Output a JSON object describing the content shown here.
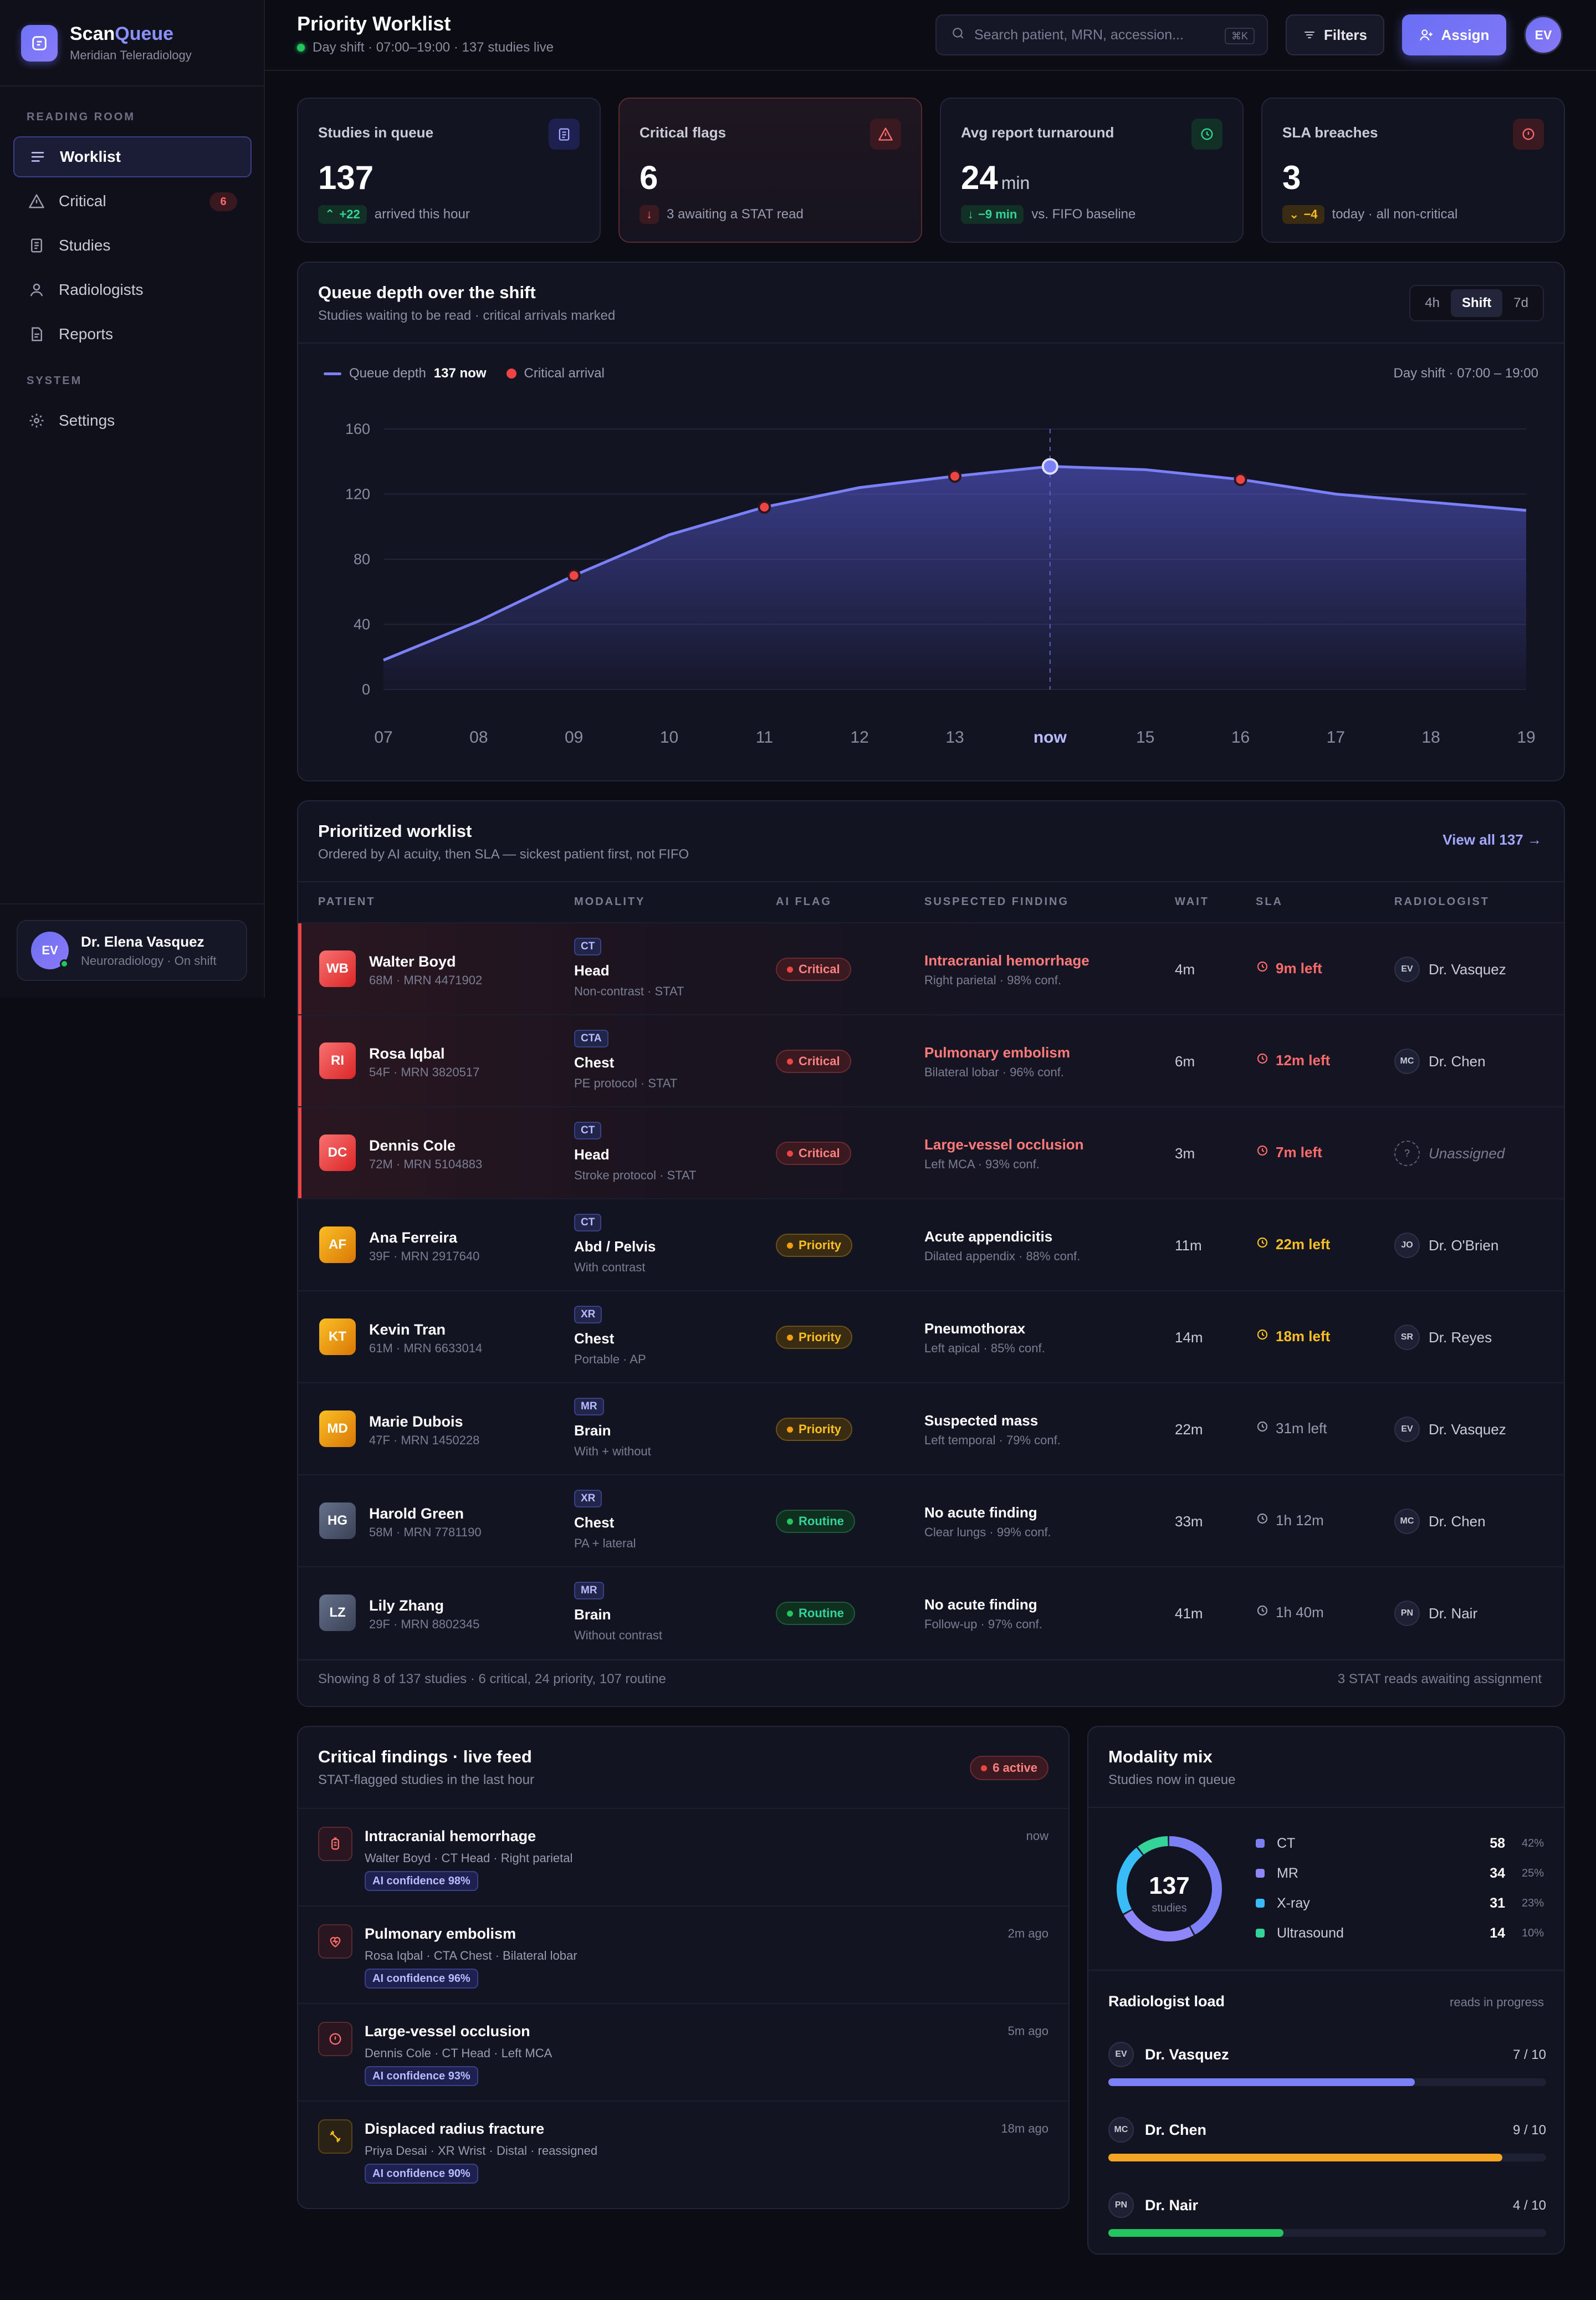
{
  "brand": {
    "name_a": "Scan",
    "name_b": "Queue",
    "sub": "Meridian Teleradiology"
  },
  "sidebar": {
    "section_reading": "READING ROOM",
    "section_system": "SYSTEM",
    "items": [
      {
        "label": "Worklist",
        "icon": "list-icon",
        "active": true
      },
      {
        "label": "Critical",
        "icon": "alert-triangle-icon",
        "badge": "6"
      },
      {
        "label": "Studies",
        "icon": "document-icon"
      },
      {
        "label": "Radiologists",
        "icon": "user-icon"
      },
      {
        "label": "Reports",
        "icon": "report-icon"
      }
    ],
    "settings": {
      "label": "Settings",
      "icon": "gear-icon"
    },
    "user": {
      "initials": "EV",
      "name": "Dr. Elena Vasquez",
      "sub": "Neuroradiology · On shift"
    }
  },
  "header": {
    "title": "Priority Worklist",
    "sub": "Day shift · 07:00–19:00 · 137 studies live",
    "search_placeholder": "Search patient, MRN, accession...",
    "search_kbd": "⌘K",
    "filters_label": "Filters",
    "assign_label": "Assign",
    "avatar": "EV"
  },
  "kpis": [
    {
      "label": "Studies in queue",
      "value": "137",
      "unit": "",
      "delta": "+22",
      "delta_dir": "up",
      "delta_tone": "green",
      "note": "arrived this hour",
      "icon": "clipboard-icon",
      "tone": "indigo"
    },
    {
      "label": "Critical flags",
      "value": "6",
      "unit": "",
      "delta": "",
      "delta_dir": "down",
      "delta_tone": "red",
      "note": "3 awaiting a STAT read",
      "icon": "alert-triangle-icon",
      "tone": "red"
    },
    {
      "label": "Avg report turnaround",
      "value": "24",
      "unit": "min",
      "delta": "−9 min",
      "delta_dir": "down",
      "delta_tone": "green",
      "note": "vs. FIFO baseline",
      "icon": "clock-icon",
      "tone": "green"
    },
    {
      "label": "SLA breaches",
      "value": "3",
      "unit": "",
      "delta": "−4",
      "delta_dir": "down",
      "delta_tone": "amber",
      "note": "today · all non-critical",
      "icon": "alert-circle-icon",
      "tone": "red"
    }
  ],
  "queue_chart": {
    "title": "Queue depth over the shift",
    "sub": "Studies waiting to be read · critical arrivals marked",
    "ranges": [
      "4h",
      "Shift",
      "7d"
    ],
    "active_range": "Shift",
    "legend_series": "Queue depth",
    "legend_now": "137 now",
    "legend_critical": "Critical arrival",
    "shift_label": "Day shift · 07:00 – 19:00"
  },
  "chart_data": {
    "type": "area",
    "title": "Queue depth over the shift",
    "categories": [
      "07",
      "08",
      "09",
      "10",
      "11",
      "12",
      "13",
      "now",
      "15",
      "16",
      "17",
      "18",
      "19"
    ],
    "series": [
      {
        "name": "Queue depth",
        "values": [
          18,
          42,
          70,
          95,
          112,
          124,
          131,
          137,
          135,
          129,
          120,
          115,
          110
        ]
      }
    ],
    "critical_arrivals": [
      {
        "x": "09",
        "y": 70
      },
      {
        "x": "11",
        "y": 112
      },
      {
        "x": "13",
        "y": 131
      },
      {
        "x": "16",
        "y": 129
      }
    ],
    "now_marker": "now",
    "yticks": [
      0,
      40,
      80,
      120,
      160
    ],
    "ylim": [
      0,
      160
    ],
    "grid": true,
    "colors": {
      "line": "#7b80f7",
      "critical": "#ef4444"
    }
  },
  "worklist": {
    "title": "Prioritized worklist",
    "sub": "Ordered by AI acuity, then SLA — sickest patient first, not FIFO",
    "view_all": "View all 137 →",
    "headers": [
      "PATIENT",
      "MODALITY",
      "AI FLAG",
      "SUSPECTED FINDING",
      "WAIT",
      "SLA",
      "RADIOLOGIST"
    ],
    "rows": [
      {
        "initials": "WB",
        "name": "Walter Boyd",
        "meta": "68M · MRN 4471902",
        "mod": "CT",
        "body": "Head",
        "protocol": "Non-contrast · STAT",
        "flag": "Critical",
        "finding": "Intracranial hemorrhage",
        "finding_sub": "Right parietal · 98% conf.",
        "wait": "4m",
        "sla": "9m left",
        "rad_init": "EV",
        "rad": "Dr. Vasquez",
        "tone": "critical"
      },
      {
        "initials": "RI",
        "name": "Rosa Iqbal",
        "meta": "54F · MRN 3820517",
        "mod": "CTA",
        "body": "Chest",
        "protocol": "PE protocol · STAT",
        "flag": "Critical",
        "finding": "Pulmonary embolism",
        "finding_sub": "Bilateral lobar · 96% conf.",
        "wait": "6m",
        "sla": "12m left",
        "rad_init": "MC",
        "rad": "Dr. Chen",
        "tone": "critical"
      },
      {
        "initials": "DC",
        "name": "Dennis Cole",
        "meta": "72M · MRN 5104883",
        "mod": "CT",
        "body": "Head",
        "protocol": "Stroke protocol · STAT",
        "flag": "Critical",
        "finding": "Large-vessel occlusion",
        "finding_sub": "Left MCA · 93% conf.",
        "wait": "3m",
        "sla": "7m left",
        "rad_init": "?",
        "rad": "Unassigned",
        "tone": "critical"
      },
      {
        "initials": "AF",
        "name": "Ana Ferreira",
        "meta": "39F · MRN 2917640",
        "mod": "CT",
        "body": "Abd / Pelvis",
        "protocol": "With contrast",
        "flag": "Priority",
        "finding": "Acute appendicitis",
        "finding_sub": "Dilated appendix · 88% conf.",
        "wait": "11m",
        "sla": "22m left",
        "rad_init": "JO",
        "rad": "Dr. O'Brien",
        "tone": "priority"
      },
      {
        "initials": "KT",
        "name": "Kevin Tran",
        "meta": "61M · MRN 6633014",
        "mod": "XR",
        "body": "Chest",
        "protocol": "Portable · AP",
        "flag": "Priority",
        "finding": "Pneumothorax",
        "finding_sub": "Left apical · 85% conf.",
        "wait": "14m",
        "sla": "18m left",
        "rad_init": "SR",
        "rad": "Dr. Reyes",
        "tone": "priority"
      },
      {
        "initials": "MD",
        "name": "Marie Dubois",
        "meta": "47F · MRN 1450228",
        "mod": "MR",
        "body": "Brain",
        "protocol": "With + without",
        "flag": "Priority",
        "finding": "Suspected mass",
        "finding_sub": "Left temporal · 79% conf.",
        "wait": "22m",
        "sla": "31m left",
        "rad_init": "EV",
        "rad": "Dr. Vasquez",
        "tone": "priority-muted"
      },
      {
        "initials": "HG",
        "name": "Harold Green",
        "meta": "58M · MRN 7781190",
        "mod": "XR",
        "body": "Chest",
        "protocol": "PA + lateral",
        "flag": "Routine",
        "finding": "No acute finding",
        "finding_sub": "Clear lungs · 99% conf.",
        "wait": "33m",
        "sla": "1h 12m",
        "rad_init": "MC",
        "rad": "Dr. Chen",
        "tone": "routine"
      },
      {
        "initials": "LZ",
        "name": "Lily Zhang",
        "meta": "29F · MRN 8802345",
        "mod": "MR",
        "body": "Brain",
        "protocol": "Without contrast",
        "flag": "Routine",
        "finding": "No acute finding",
        "finding_sub": "Follow-up · 97% conf.",
        "wait": "41m",
        "sla": "1h 40m",
        "rad_init": "PN",
        "rad": "Dr. Nair",
        "tone": "routine"
      }
    ],
    "footer_left": "Showing 8 of 137 studies · 6 critical, 24 priority, 107 routine",
    "footer_right": "3 STAT reads awaiting assignment"
  },
  "feed": {
    "title": "Critical findings · live feed",
    "sub": "STAT-flagged studies in the last hour",
    "active": "6 active",
    "items": [
      {
        "title": "Intracranial hemorrhage",
        "sub": "Walter Boyd · CT Head · Right parietal",
        "conf": "AI confidence 98%",
        "time": "now",
        "icon": "brain-icon",
        "tone": "red"
      },
      {
        "title": "Pulmonary embolism",
        "sub": "Rosa Iqbal · CTA Chest · Bilateral lobar",
        "conf": "AI confidence 96%",
        "time": "2m ago",
        "icon": "heart-icon",
        "tone": "red"
      },
      {
        "title": "Large-vessel occlusion",
        "sub": "Dennis Cole · CT Head · Left MCA",
        "conf": "AI confidence 93%",
        "time": "5m ago",
        "icon": "alert-circle-icon",
        "tone": "red"
      },
      {
        "title": "Displaced radius fracture",
        "sub": "Priya Desai · XR Wrist · Distal · reassigned",
        "conf": "AI confidence 90%",
        "time": "18m ago",
        "icon": "bone-icon",
        "tone": "amber"
      }
    ]
  },
  "modality": {
    "title": "Modality mix",
    "sub": "Studies now in queue",
    "total": "137",
    "total_label": "studies",
    "items": [
      {
        "name": "CT",
        "count": 58,
        "pct": "42%",
        "color": "#7b80f7"
      },
      {
        "name": "MR",
        "count": 34,
        "pct": "25%",
        "color": "#8f86f9"
      },
      {
        "name": "X-ray",
        "count": 31,
        "pct": "23%",
        "color": "#38bdf8"
      },
      {
        "name": "Ultrasound",
        "count": 14,
        "pct": "10%",
        "color": "#34d399"
      }
    ],
    "load_title": "Radiologist load",
    "load_note": "reads in progress",
    "load": [
      {
        "initials": "EV",
        "name": "Dr. Vasquez",
        "value": "7 / 10",
        "fraction": 0.7,
        "color": "#7b80f7"
      },
      {
        "initials": "MC",
        "name": "Dr. Chen",
        "value": "9 / 10",
        "fraction": 0.9,
        "color": "#f5a524"
      },
      {
        "initials": "PN",
        "name": "Dr. Nair",
        "value": "4 / 10",
        "fraction": 0.4,
        "color": "#22c55e"
      }
    ]
  }
}
